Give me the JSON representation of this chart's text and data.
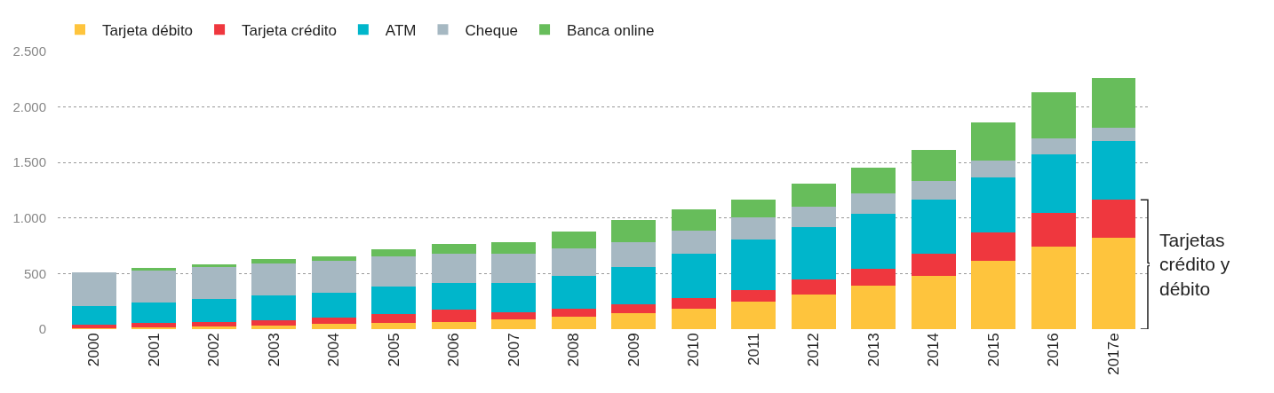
{
  "chart_data": {
    "type": "bar",
    "stacked": true,
    "categories": [
      "2000",
      "2001",
      "2002",
      "2003",
      "2004",
      "2005",
      "2006",
      "2007",
      "2008",
      "2009",
      "2010",
      "2011",
      "2012",
      "2013",
      "2014",
      "2015",
      "2016",
      "2017e"
    ],
    "series": [
      {
        "name": "Tarjeta débito",
        "color": "#fec43d",
        "values": [
          5,
          15,
          25,
          30,
          50,
          55,
          65,
          85,
          110,
          140,
          180,
          245,
          310,
          390,
          480,
          615,
          740,
          820
        ]
      },
      {
        "name": "Tarjeta crédito",
        "color": "#ef373e",
        "values": [
          35,
          40,
          40,
          50,
          50,
          80,
          110,
          65,
          70,
          85,
          100,
          110,
          140,
          155,
          195,
          255,
          305,
          345
        ]
      },
      {
        "name": "ATM",
        "color": "#00b6cb",
        "values": [
          170,
          185,
          205,
          220,
          230,
          250,
          240,
          265,
          300,
          335,
          400,
          455,
          470,
          490,
          490,
          495,
          525,
          525
        ]
      },
      {
        "name": "Cheque",
        "color": "#a6b8c2",
        "values": [
          300,
          295,
          290,
          290,
          285,
          270,
          265,
          260,
          250,
          225,
          210,
          200,
          185,
          185,
          170,
          150,
          145,
          125
        ]
      },
      {
        "name": "Banca online",
        "color": "#67bd5b",
        "values": [
          0,
          15,
          25,
          40,
          40,
          65,
          90,
          110,
          145,
          195,
          190,
          160,
          205,
          230,
          280,
          345,
          415,
          445
        ]
      }
    ],
    "ylim": [
      0,
      2500
    ],
    "yticks": [
      0,
      {
        "value": 500,
        "label": "500"
      },
      {
        "value": 1000,
        "label": "1.000"
      },
      {
        "value": 1500,
        "label": "1.500"
      },
      {
        "value": 2000,
        "label": "2.000"
      },
      {
        "value": 2500,
        "label": "2.500"
      }
    ],
    "grid": "y",
    "legend": "top left",
    "annotations": [
      "Tarjetas crédito y débito"
    ]
  }
}
